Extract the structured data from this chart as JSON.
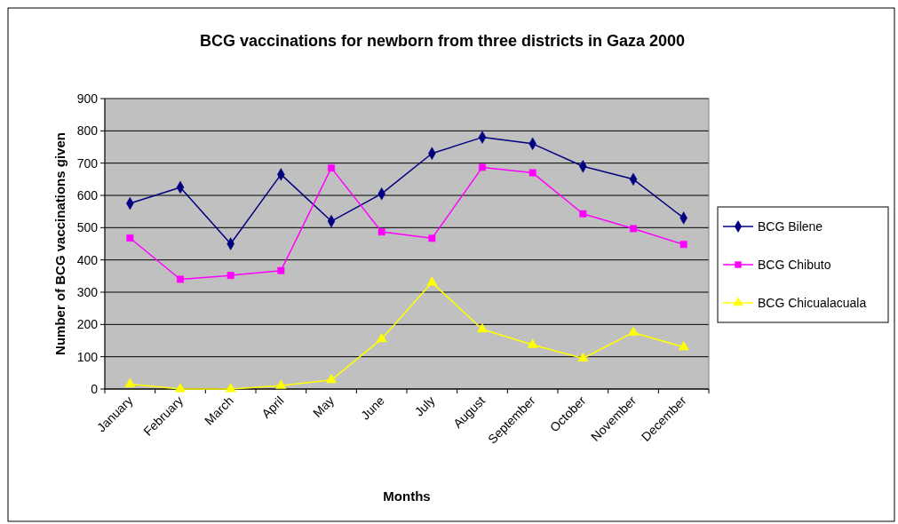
{
  "chart_data": {
    "type": "line",
    "title": "BCG vaccinations for newborn from three districts in Gaza 2000",
    "xlabel": "Months",
    "ylabel": "Number of BCG vaccinations given",
    "categories": [
      "January",
      "February",
      "March",
      "April",
      "May",
      "June",
      "July",
      "August",
      "September",
      "October",
      "November",
      "December"
    ],
    "series": [
      {
        "name": "BCG Bilene",
        "color": "#000080",
        "marker": "diamond",
        "values": [
          575,
          625,
          450,
          665,
          520,
          605,
          730,
          780,
          760,
          690,
          650,
          530
        ]
      },
      {
        "name": "BCG Chibuto",
        "color": "#ff00ff",
        "marker": "square",
        "values": [
          468,
          340,
          352,
          367,
          685,
          487,
          467,
          687,
          670,
          543,
          497,
          448
        ]
      },
      {
        "name": "BCG Chicualacuala",
        "color": "#ffff00",
        "marker": "triangle",
        "values": [
          15,
          0,
          0,
          10,
          28,
          155,
          330,
          185,
          137,
          95,
          175,
          130
        ]
      }
    ],
    "ylim": [
      0,
      900
    ],
    "yticks": [
      0,
      100,
      200,
      300,
      400,
      500,
      600,
      700,
      800,
      900
    ],
    "grid": "y",
    "legend": "right",
    "line_style": "solid"
  }
}
